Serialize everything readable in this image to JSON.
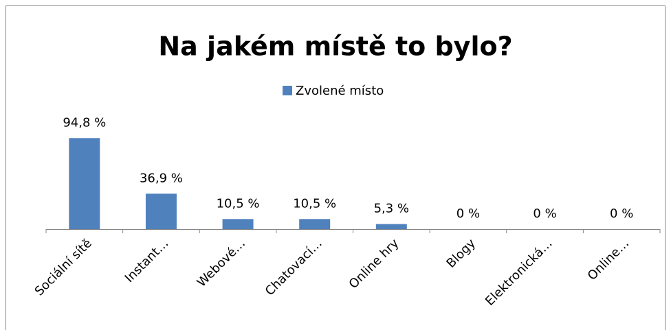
{
  "chart_data": {
    "type": "bar",
    "title": "Na jakém místě to bylo?",
    "categories": [
      "Sociální sítě",
      "Instant…",
      "Webové…",
      "Chatovací…",
      "Online hry",
      "Blogy",
      "Elektronická…",
      "Online…"
    ],
    "series": [
      {
        "name": "Zvolené místo",
        "color": "#4f81bd",
        "values": [
          94.8,
          36.9,
          10.5,
          10.5,
          5.3,
          0,
          0,
          0
        ],
        "value_labels": [
          "94,8 %",
          "36,9 %",
          "10,5 %",
          "10,5 %",
          "5,3 %",
          "0 %",
          "0 %",
          "0 %"
        ]
      }
    ]
  }
}
